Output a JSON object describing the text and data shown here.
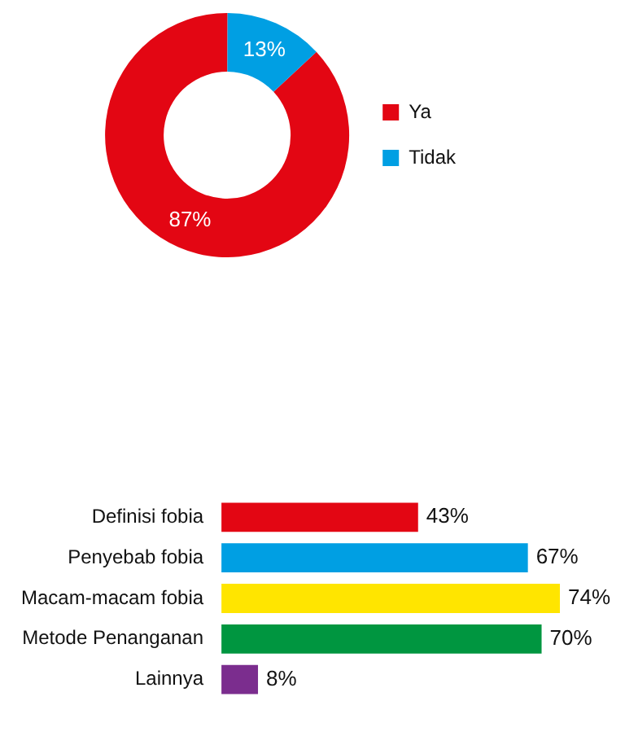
{
  "chart_data": [
    {
      "type": "donut",
      "categories": [
        "Ya",
        "Tidak"
      ],
      "values": [
        87,
        13
      ],
      "colors": [
        "#e30613",
        "#009fe3"
      ],
      "value_labels": [
        "87%",
        "13%"
      ],
      "legend": "right"
    },
    {
      "type": "bar",
      "orientation": "horizontal",
      "categories": [
        "Definisi fobia",
        "Penyebab fobia",
        "Macam-macam fobia",
        "Metode Penanganan",
        "Lainnya"
      ],
      "values": [
        43,
        67,
        74,
        70,
        8
      ],
      "colors": [
        "#e30613",
        "#009fe3",
        "#ffe500",
        "#009640",
        "#7b2d8e"
      ],
      "value_labels": [
        "43%",
        "67%",
        "74%",
        "70%",
        "8%"
      ]
    }
  ]
}
